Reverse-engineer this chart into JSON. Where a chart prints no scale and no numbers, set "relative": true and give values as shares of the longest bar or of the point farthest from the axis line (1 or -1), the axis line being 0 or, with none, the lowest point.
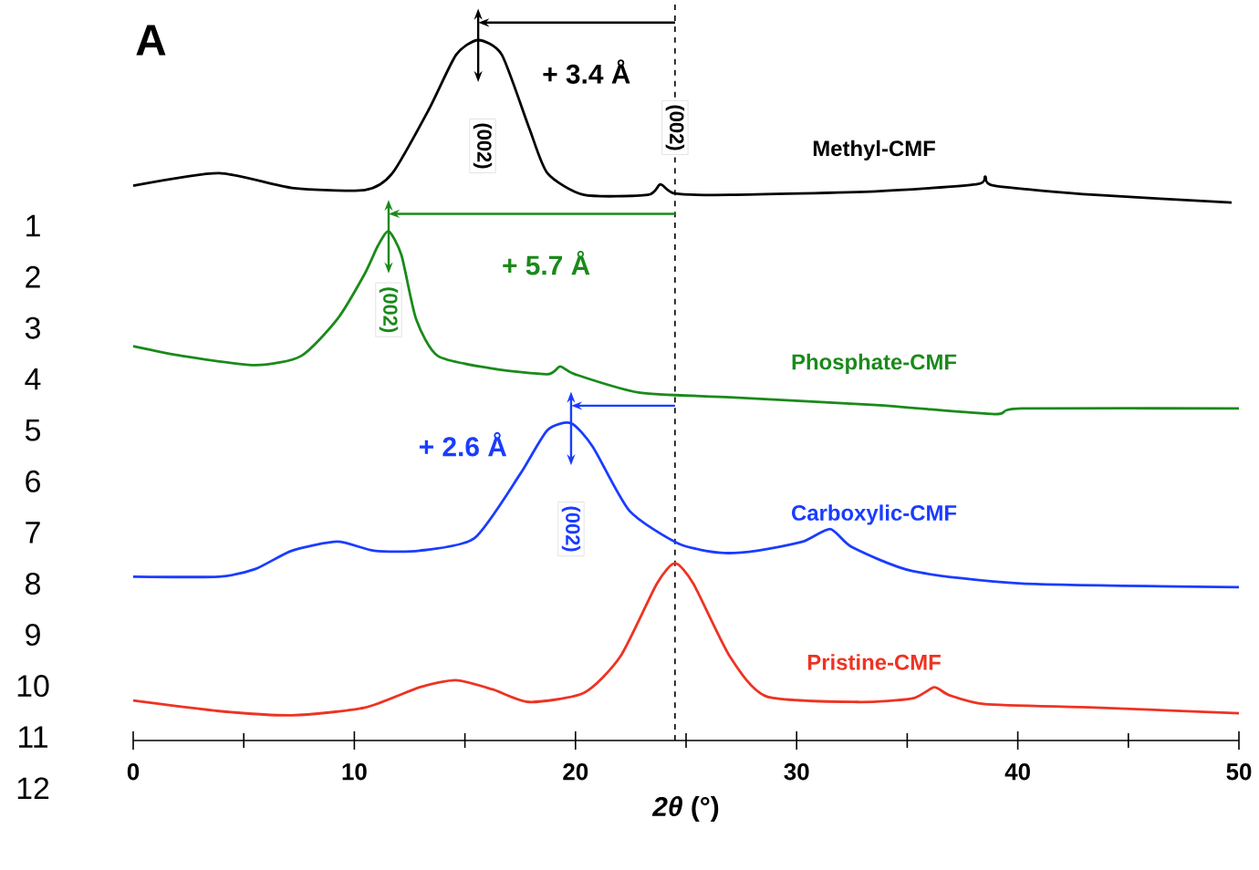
{
  "chart_data": {
    "type": "line",
    "relative": true,
    "xlabel": "*2θ* (°)",
    "xlim": [
      0,
      50
    ],
    "xticks": [
      0,
      10,
      20,
      30,
      40,
      50
    ],
    "legend": false,
    "grid": false,
    "series": [
      {
        "name": "Methyl-CMF",
        "color": "#000000",
        "x": [
          0,
          3.88,
          7.18,
          10.48,
          11.72,
          13.37,
          14.6,
          15.6,
          16.67,
          17.9,
          18.73,
          20.38,
          23.27,
          23.84,
          24.5,
          26.98,
          33.58,
          38.12,
          38.53,
          38.94,
          43.48,
          49.67
        ],
        "values": [
          0.792,
          0.81,
          0.789,
          0.786,
          0.81,
          0.901,
          0.979,
          1,
          0.979,
          0.875,
          0.81,
          0.779,
          0.779,
          0.794,
          0.781,
          0.779,
          0.784,
          0.794,
          0.805,
          0.792,
          0.779,
          0.768
        ]
      },
      {
        "name": "Phosphate-CMF",
        "color": "#1a8a1a",
        "x": [
          0,
          2.23,
          5.53,
          7.59,
          9.24,
          10.48,
          11.06,
          11.55,
          12.13,
          12.79,
          13.78,
          16.25,
          18.73,
          19.31,
          19.97,
          22.85,
          26.98,
          33.58,
          38.94,
          40.18,
          50
        ],
        "values": [
          0.563,
          0.549,
          0.536,
          0.549,
          0.602,
          0.667,
          0.706,
          0.727,
          0.693,
          0.602,
          0.549,
          0.531,
          0.523,
          0.534,
          0.523,
          0.497,
          0.49,
          0.479,
          0.466,
          0.474,
          0.474
        ]
      },
      {
        "name": "Carboxylic-CMF",
        "color": "#1a3cff",
        "x": [
          0,
          3.88,
          5.53,
          7.18,
          9.24,
          10.89,
          12.95,
          15.43,
          17.49,
          18.73,
          19.8,
          20.79,
          22.44,
          24.67,
          26.57,
          28.22,
          30.28,
          31.52,
          32.51,
          35.23,
          40.18,
          50
        ],
        "values": [
          0.234,
          0.234,
          0.245,
          0.271,
          0.284,
          0.271,
          0.271,
          0.289,
          0.38,
          0.443,
          0.453,
          0.419,
          0.328,
          0.281,
          0.268,
          0.271,
          0.284,
          0.302,
          0.276,
          0.242,
          0.224,
          0.219
        ]
      },
      {
        "name": "Pristine-CMF",
        "color": "#ee3322",
        "x": [
          0,
          3.88,
          7.18,
          10.48,
          12.95,
          14.6,
          16.25,
          17.9,
          20.38,
          22.03,
          23.68,
          24.5,
          25.33,
          26.98,
          28.63,
          32.76,
          35.23,
          36.22,
          36.88,
          38.53,
          43.48,
          50
        ],
        "values": [
          0.057,
          0.042,
          0.036,
          0.047,
          0.076,
          0.086,
          0.073,
          0.055,
          0.068,
          0.12,
          0.224,
          0.253,
          0.224,
          0.12,
          0.063,
          0.055,
          0.06,
          0.076,
          0.065,
          0.052,
          0.047,
          0.039
        ]
      }
    ],
    "ref_lines": [
      {
        "axis": "x",
        "value": 24.5,
        "color": "#000000",
        "line_style": "dashed"
      }
    ],
    "annotations": [
      "A",
      "1",
      "2",
      "3",
      "4",
      "5",
      "6",
      "7",
      "8",
      "9",
      "10",
      "11",
      "12",
      "+ 3.4 Å",
      "+ 5.7 Å",
      "+ 2.6 Å",
      {
        "text": "(002)",
        "x": 15.8,
        "y": 0.849
      },
      {
        "text": "(002)",
        "x": 24.5,
        "y": 0.875
      },
      {
        "text": "(002)",
        "x": 11.55,
        "y": 0.615
      },
      {
        "text": "(002)",
        "x": 19.8,
        "y": 0.302
      }
    ]
  }
}
